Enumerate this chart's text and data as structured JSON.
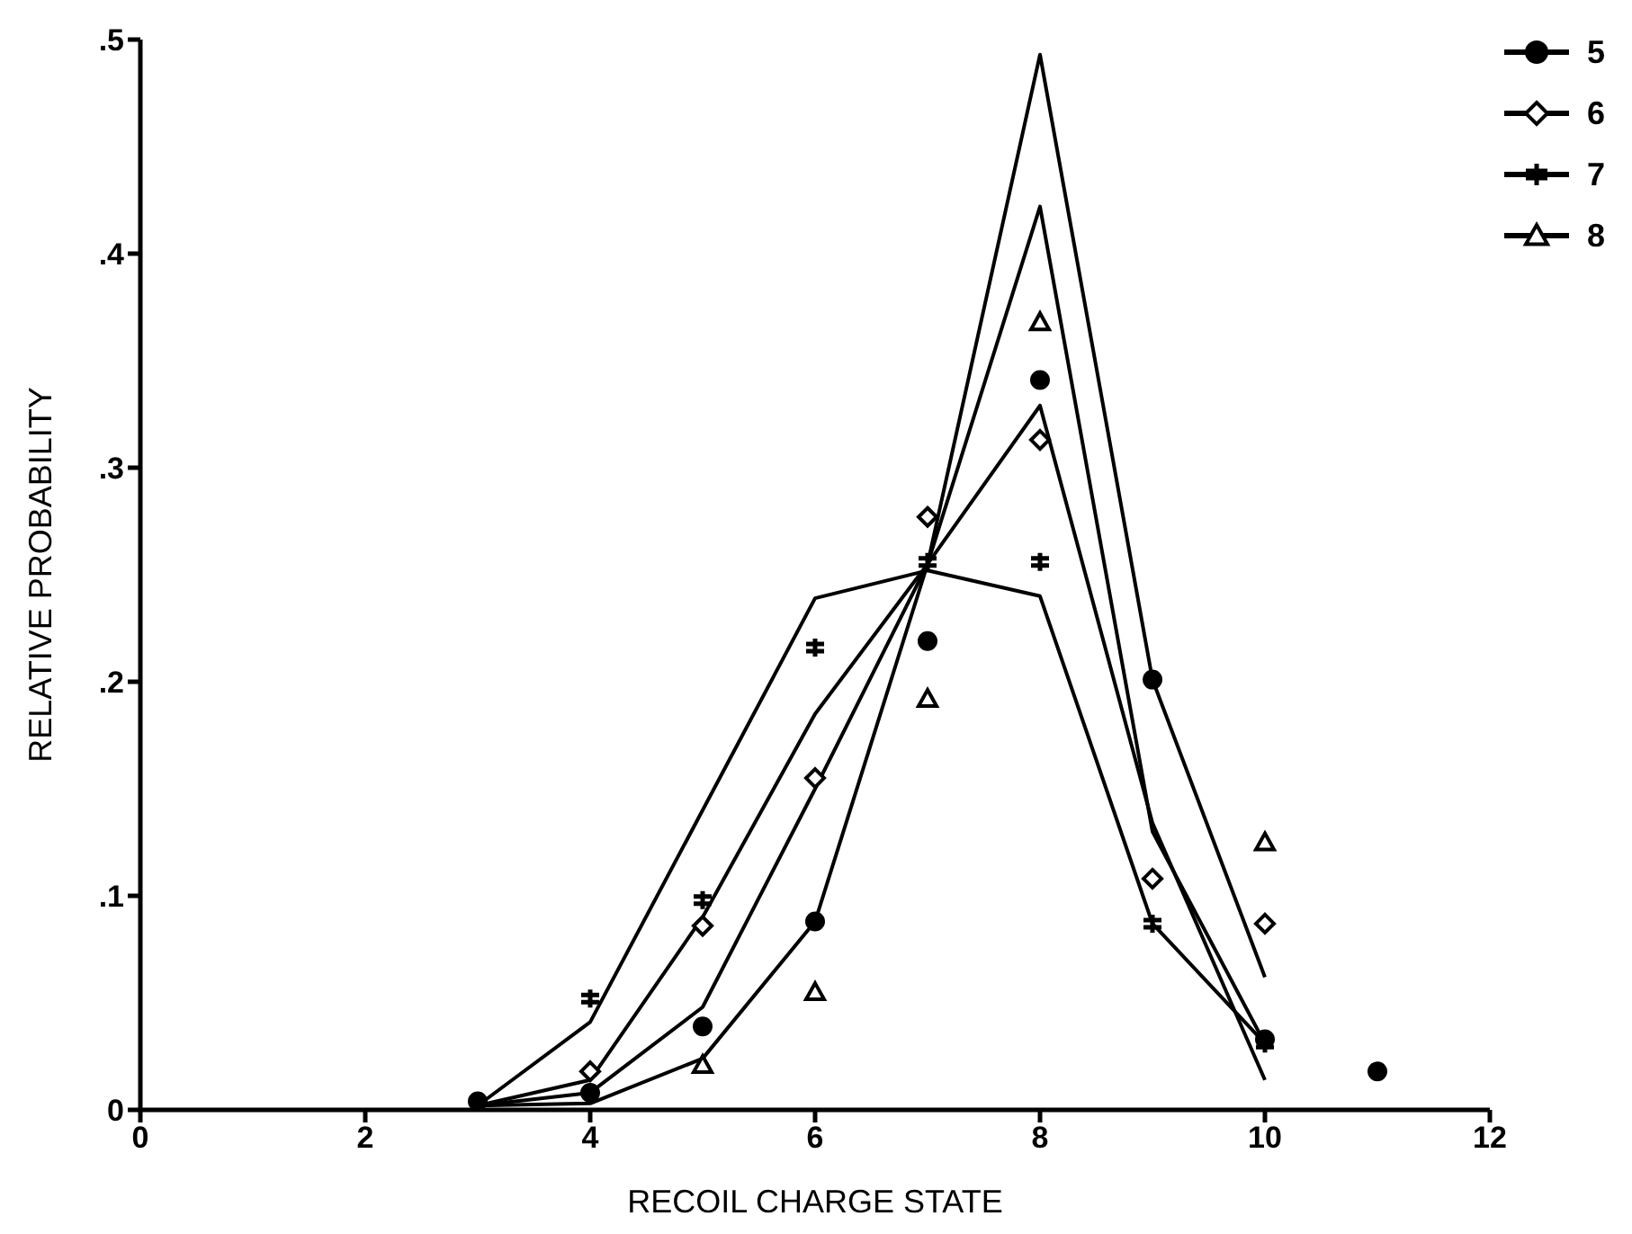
{
  "chart_data": {
    "type": "scatter",
    "xlabel": "RECOIL CHARGE STATE",
    "ylabel": "RELATIVE PROBABILITY",
    "xlim": [
      0,
      12
    ],
    "xticks": [
      0,
      2,
      4,
      6,
      8,
      10,
      12
    ],
    "ylim": [
      0,
      0.5
    ],
    "yticks": [
      {
        "value": 0,
        "label": "0"
      },
      {
        "value": 0.1,
        "label": ".1"
      },
      {
        "value": 0.2,
        "label": ".2"
      },
      {
        "value": 0.3,
        "label": ".3"
      },
      {
        "value": 0.4,
        "label": ".4"
      },
      {
        "value": 0.5,
        "label": ".5"
      }
    ],
    "grid": false,
    "legend": "top right",
    "series": [
      {
        "type": "line",
        "color": "#000000",
        "marker": "none",
        "x": [
          3,
          4,
          5,
          6,
          7,
          8,
          9,
          10
        ],
        "values": [
          0.002,
          0.041,
          0.14,
          0.239,
          0.252,
          0.24,
          0.087,
          0.031
        ]
      },
      {
        "type": "line",
        "color": "#000000",
        "marker": "none",
        "x": [
          3,
          4,
          5,
          6,
          7,
          8,
          9,
          10
        ],
        "values": [
          0.002,
          0.014,
          0.09,
          0.185,
          0.255,
          0.329,
          0.134,
          0.014
        ]
      },
      {
        "type": "line",
        "color": "#000000",
        "marker": "none",
        "x": [
          3,
          4,
          5,
          6,
          7,
          8,
          9,
          10
        ],
        "values": [
          0.002,
          0.008,
          0.048,
          0.15,
          0.255,
          0.422,
          0.13,
          0.031
        ]
      },
      {
        "type": "line",
        "color": "#000000",
        "marker": "none",
        "x": [
          3,
          4,
          5,
          6,
          7,
          8,
          9,
          10
        ],
        "values": [
          0.002,
          0.003,
          0.024,
          0.088,
          0.255,
          0.493,
          0.201,
          0.062
        ]
      },
      {
        "name": "5",
        "color": "#000000",
        "marker": "circle",
        "x": [
          3,
          4,
          5,
          6,
          7,
          8,
          9,
          10,
          11
        ],
        "values": [
          0.004,
          0.008,
          0.039,
          0.088,
          0.219,
          0.341,
          0.201,
          0.033,
          0.018
        ]
      },
      {
        "name": "6",
        "color": "#000000",
        "marker": "diamond",
        "x": [
          4,
          5,
          6,
          7,
          8,
          9,
          10
        ],
        "values": [
          0.018,
          0.086,
          0.155,
          0.277,
          0.313,
          0.108,
          0.087
        ]
      },
      {
        "name": "7",
        "color": "#000000",
        "marker": "cross",
        "x": [
          4,
          5,
          6,
          7,
          8,
          9,
          10
        ],
        "values": [
          0.052,
          0.098,
          0.216,
          0.256,
          0.256,
          0.087,
          0.031
        ]
      },
      {
        "name": "8",
        "color": "#000000",
        "marker": "triangle",
        "x": [
          5,
          6,
          7,
          8,
          10
        ],
        "values": [
          0.021,
          0.055,
          0.192,
          0.368,
          0.125
        ]
      }
    ]
  }
}
